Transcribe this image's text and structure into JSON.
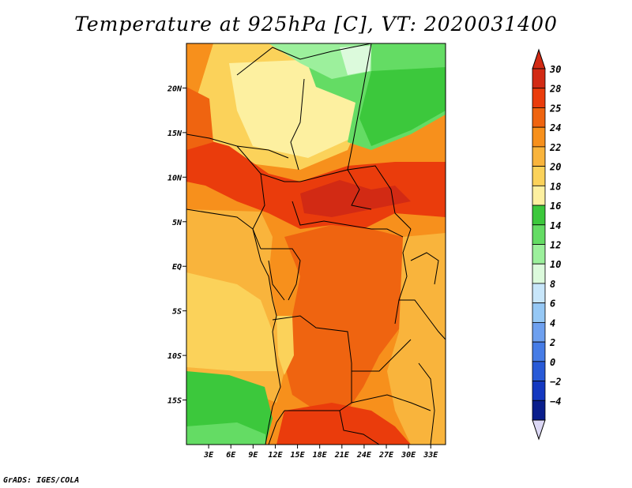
{
  "title": "Temperature at 925hPa [C], VT: 2020031400",
  "footer": "GrADS: IGES/COLA",
  "map": {
    "lon_range": [
      0,
      35
    ],
    "lat_range": [
      -20,
      25
    ],
    "x_ticks": [
      {
        "lon": 3,
        "label": "3E"
      },
      {
        "lon": 6,
        "label": "6E"
      },
      {
        "lon": 9,
        "label": "9E"
      },
      {
        "lon": 12,
        "label": "12E"
      },
      {
        "lon": 15,
        "label": "15E"
      },
      {
        "lon": 18,
        "label": "18E"
      },
      {
        "lon": 21,
        "label": "21E"
      },
      {
        "lon": 24,
        "label": "24E"
      },
      {
        "lon": 27,
        "label": "27E"
      },
      {
        "lon": 30,
        "label": "30E"
      },
      {
        "lon": 33,
        "label": "33E"
      }
    ],
    "y_ticks": [
      {
        "lat": 20,
        "label": "20N"
      },
      {
        "lat": 15,
        "label": "15N"
      },
      {
        "lat": 10,
        "label": "10N"
      },
      {
        "lat": 5,
        "label": "5N"
      },
      {
        "lat": 0,
        "label": "EQ"
      },
      {
        "lat": -5,
        "label": "5S"
      },
      {
        "lat": -10,
        "label": "10S"
      },
      {
        "lat": -15,
        "label": "15S"
      }
    ]
  },
  "colorbar": {
    "levels": [
      {
        "label": "30",
        "color": "#d22a14"
      },
      {
        "label": "28",
        "color": "#ea3c0c"
      },
      {
        "label": "25",
        "color": "#ef6410"
      },
      {
        "label": "24",
        "color": "#f7901c"
      },
      {
        "label": "22",
        "color": "#f9b43c"
      },
      {
        "label": "20",
        "color": "#fbd25a"
      },
      {
        "label": "18",
        "color": "#fdf0a0"
      },
      {
        "label": "16",
        "color": "#3cc83c"
      },
      {
        "label": "14",
        "color": "#64dc64"
      },
      {
        "label": "12",
        "color": "#9cf09c"
      },
      {
        "label": "10",
        "color": "#dcfadc"
      },
      {
        "label": "8",
        "color": "#c8e6fa"
      },
      {
        "label": "6",
        "color": "#96c8f5"
      },
      {
        "label": "4",
        "color": "#6ea0ef"
      },
      {
        "label": "2",
        "color": "#467ce6"
      },
      {
        "label": "0",
        "color": "#285ad7"
      },
      {
        "label": "−2",
        "color": "#1438c0"
      },
      {
        "label": "−4",
        "color": "#0a1e8c"
      }
    ],
    "top_cap_color": "#d22a14",
    "bottom_cap_color": "#dcd8f5"
  }
}
